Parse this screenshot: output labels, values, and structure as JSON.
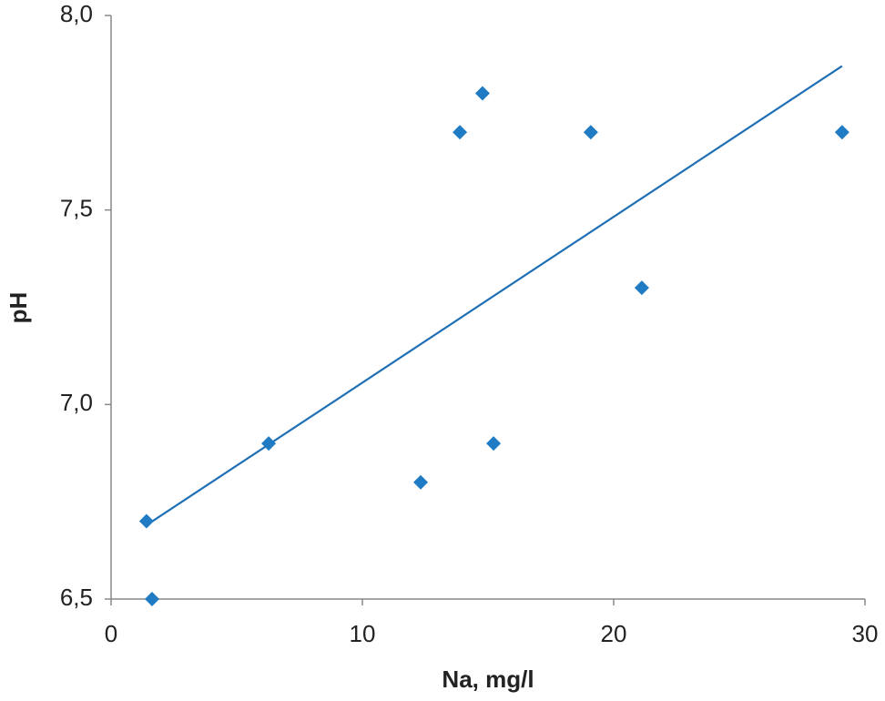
{
  "chart_data": {
    "type": "scatter",
    "x_label": "Na, mg/l",
    "y_label": "pH",
    "x": [
      1.41,
      1.63,
      6.27,
      12.32,
      13.88,
      14.78,
      15.22,
      19.09,
      21.12,
      29.09
    ],
    "series": [
      {
        "color": "#1f7bc4",
        "values": [
          6.7,
          6.5,
          6.9,
          6.8,
          7.7,
          7.8,
          6.9,
          7.7,
          7.3,
          7.7
        ]
      }
    ],
    "trendline": {
      "color": "#1f6fb5",
      "x": [
        1.41,
        29.09
      ],
      "y": [
        6.69,
        7.87
      ]
    },
    "xlim": [
      0,
      30
    ],
    "xticks": [
      0,
      10,
      20,
      30
    ],
    "ylim": [
      6.5,
      8.0
    ],
    "yticks": [
      {
        "value": 6.5,
        "label": "6,5"
      },
      {
        "value": 7.0,
        "label": "7,0"
      },
      {
        "value": 7.5,
        "label": "7,5"
      },
      {
        "value": 8.0,
        "label": "8,0"
      }
    ]
  }
}
